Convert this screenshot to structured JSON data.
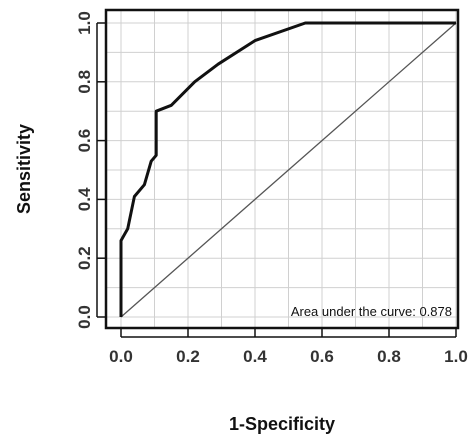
{
  "chart_data": {
    "type": "line",
    "xlabel": "1-Specificity",
    "ylabel": "Sensitivity",
    "xlim": [
      0,
      1
    ],
    "ylim": [
      0,
      1
    ],
    "xticks": [
      "0.0",
      "0.2",
      "0.4",
      "0.6",
      "0.8",
      "1.0"
    ],
    "yticks": [
      "0.0",
      "0.2",
      "0.4",
      "0.6",
      "0.8",
      "1.0"
    ],
    "grid": true,
    "annotation": "Area under the curve: 0.878",
    "colors": {
      "roc": "#111111",
      "reference": "#555555",
      "grid": "#d0d0d0"
    },
    "series": [
      {
        "points": [
          [
            0.0,
            0.0
          ],
          [
            0.0,
            0.26
          ],
          [
            0.02,
            0.3
          ],
          [
            0.04,
            0.41
          ],
          [
            0.07,
            0.45
          ],
          [
            0.09,
            0.53
          ],
          [
            0.105,
            0.55
          ],
          [
            0.105,
            0.7
          ],
          [
            0.15,
            0.72
          ],
          [
            0.22,
            0.8
          ],
          [
            0.29,
            0.86
          ],
          [
            0.4,
            0.94
          ],
          [
            0.55,
            1.0
          ],
          [
            1.0,
            1.0
          ]
        ]
      }
    ],
    "reference_line": [
      [
        0,
        0
      ],
      [
        1,
        1
      ]
    ]
  }
}
